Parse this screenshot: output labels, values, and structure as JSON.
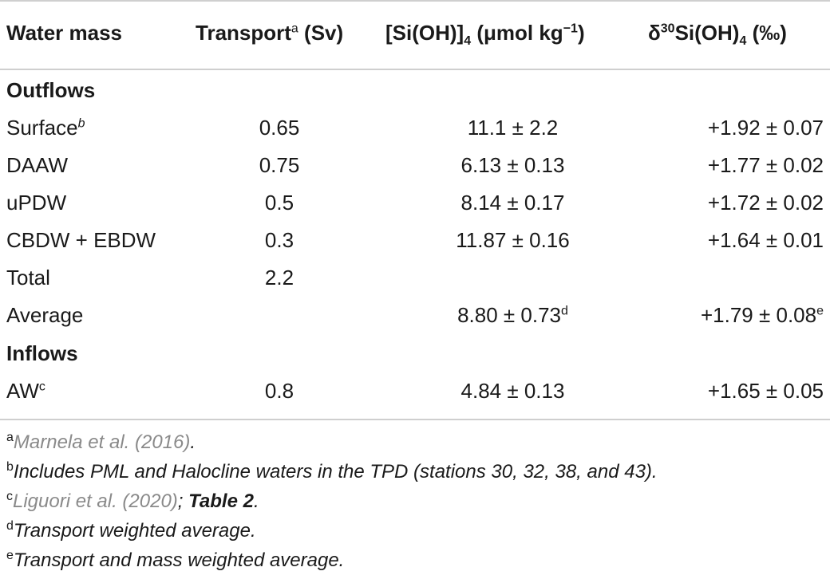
{
  "header": {
    "col1": "Water mass",
    "col2": "Transport",
    "col2_sup": "a",
    "col2_unit": " (Sv)",
    "col3_pre": "[Si(OH)]",
    "col3_sub": "4",
    "col3_unit_pre": " (μmol kg",
    "col3_unit_sup": "−1",
    "col3_unit_post": ")",
    "col4_delta": "δ",
    "col4_sup": "30",
    "col4_mid": "Si(OH)",
    "col4_sub": "4",
    "col4_unit": " (‰)"
  },
  "sections": [
    {
      "title": "Outflows",
      "rows": [
        {
          "mass": "Surface",
          "mass_sup": "b",
          "transport": "0.65",
          "si": "11.1 ± 2.2",
          "si_sup": "",
          "delta": "+1.92 ± 0.07",
          "delta_sup": ""
        },
        {
          "mass": "DAAW",
          "mass_sup": "",
          "transport": "0.75",
          "si": "6.13 ± 0.13",
          "si_sup": "",
          "delta": "+1.77 ± 0.02",
          "delta_sup": ""
        },
        {
          "mass": "uPDW",
          "mass_sup": "",
          "transport": "0.5",
          "si": "8.14 ± 0.17",
          "si_sup": "",
          "delta": "+1.72 ± 0.02",
          "delta_sup": ""
        },
        {
          "mass": "CBDW + EBDW",
          "mass_sup": "",
          "transport": "0.3",
          "si": "11.87 ± 0.16",
          "si_sup": "",
          "delta": "+1.64 ± 0.01",
          "delta_sup": ""
        },
        {
          "mass": "Total",
          "mass_sup": "",
          "transport": "2.2",
          "si": "",
          "si_sup": "",
          "delta": "",
          "delta_sup": ""
        },
        {
          "mass": "Average",
          "mass_sup": "",
          "transport": "",
          "si": "8.80 ± 0.73",
          "si_sup": "d",
          "delta": "+1.79 ± 0.08",
          "delta_sup": "e"
        }
      ]
    },
    {
      "title": "Inflows",
      "rows": [
        {
          "mass": "AW",
          "mass_sup": "c",
          "transport": "0.8",
          "si": "4.84 ± 0.13",
          "si_sup": "",
          "delta": "+1.65 ± 0.05",
          "delta_sup": ""
        }
      ]
    }
  ],
  "notes": {
    "a_mark": "a",
    "a_ref": "Marnela et al. (2016)",
    "a_post": ".",
    "b_mark": "b",
    "b_text": "Includes PML and Halocline waters in the TPD (stations 30, 32, 38, and 43).",
    "c_mark": "c",
    "c_ref": "Liguori et al. (2020)",
    "c_mid": "; ",
    "c_bold": "Table 2",
    "c_post": ".",
    "d_mark": "d",
    "d_text": "Transport weighted average.",
    "e_mark": "e",
    "e_text": "Transport and mass weighted average."
  }
}
